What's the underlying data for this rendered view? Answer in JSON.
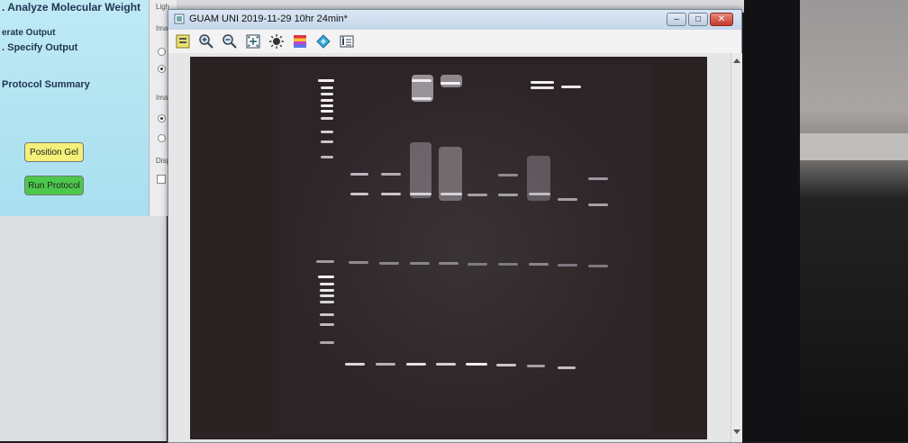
{
  "protocol_panel": {
    "steps": [
      ". Analyze Molecular Weight",
      "erate Output",
      ". Specify Output",
      "Protocol Summary"
    ],
    "buttons": {
      "position_gel": "Position Gel",
      "run_protocol": "Run Protocol"
    }
  },
  "settings_panel": {
    "labels": [
      "Ligh",
      "Ima",
      "Ima",
      "Disp"
    ]
  },
  "window": {
    "title": "GUAM UNI 2019-11-29 10hr 24min*",
    "controls": {
      "minimize": "–",
      "maximize": "□",
      "close": "✕"
    },
    "toolbar": [
      "image-settings-icon",
      "zoom-in-icon",
      "zoom-out-icon",
      "fit-to-window-icon",
      "exposure-icon",
      "color-palette-icon",
      "layers-icon",
      "image-info-icon"
    ]
  },
  "colors": {
    "position_gel_button": "#f4f07a",
    "run_protocol_button": "#4cc94c",
    "close_button": "#c4382a",
    "gel_background": "#2b2224",
    "band_color": "#e8e4ea"
  }
}
